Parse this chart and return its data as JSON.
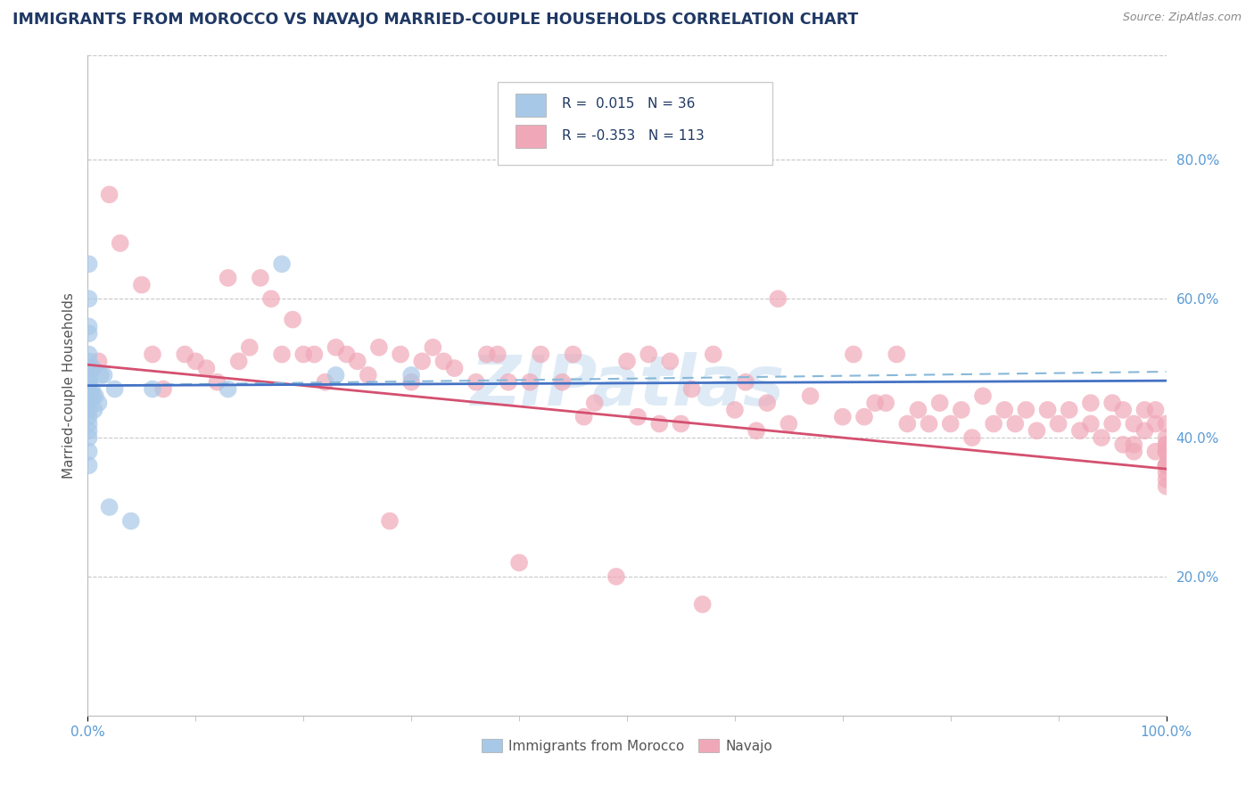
{
  "title": "IMMIGRANTS FROM MOROCCO VS NAVAJO MARRIED-COUPLE HOUSEHOLDS CORRELATION CHART",
  "source": "Source: ZipAtlas.com",
  "ylabel": "Married-couple Households",
  "legend_R1": "0.015",
  "legend_N1": "36",
  "legend_R2": "-0.353",
  "legend_N2": "113",
  "blue_color": "#a8c8e8",
  "pink_color": "#f0a8b8",
  "trendline_blue_solid": "#4472c4",
  "trendline_pink_solid": "#d45070",
  "trendline_blue_dashed": "#88b8d8",
  "background_color": "#ffffff",
  "grid_color": "#c8c8c8",
  "title_color": "#1f3864",
  "source_color": "#888888",
  "tick_color": "#5b9bd5",
  "ylabel_color": "#555555",
  "legend_text_color": "#1f3864",
  "watermark_color": "#c8dff0",
  "blue_scatter_x": [
    0.001,
    0.001,
    0.001,
    0.001,
    0.001,
    0.001,
    0.001,
    0.001,
    0.001,
    0.001,
    0.001,
    0.001,
    0.001,
    0.001,
    0.001,
    0.001,
    0.001,
    0.001,
    0.001,
    0.001,
    0.004,
    0.005,
    0.005,
    0.006,
    0.007,
    0.01,
    0.012,
    0.015,
    0.02,
    0.025,
    0.04,
    0.06,
    0.13,
    0.18,
    0.23,
    0.3
  ],
  "blue_scatter_y": [
    0.52,
    0.51,
    0.5,
    0.49,
    0.48,
    0.47,
    0.46,
    0.45,
    0.44,
    0.43,
    0.42,
    0.41,
    0.4,
    0.56,
    0.6,
    0.65,
    0.55,
    0.38,
    0.36,
    0.48,
    0.47,
    0.46,
    0.5,
    0.44,
    0.46,
    0.45,
    0.49,
    0.49,
    0.3,
    0.47,
    0.28,
    0.47,
    0.47,
    0.65,
    0.49,
    0.49
  ],
  "pink_scatter_x": [
    0.01,
    0.02,
    0.03,
    0.05,
    0.06,
    0.07,
    0.09,
    0.1,
    0.11,
    0.12,
    0.13,
    0.14,
    0.15,
    0.16,
    0.17,
    0.18,
    0.19,
    0.2,
    0.21,
    0.22,
    0.23,
    0.24,
    0.25,
    0.26,
    0.27,
    0.28,
    0.29,
    0.3,
    0.31,
    0.32,
    0.33,
    0.34,
    0.36,
    0.37,
    0.38,
    0.39,
    0.4,
    0.41,
    0.42,
    0.44,
    0.45,
    0.46,
    0.47,
    0.49,
    0.5,
    0.51,
    0.52,
    0.53,
    0.54,
    0.55,
    0.56,
    0.57,
    0.58,
    0.6,
    0.61,
    0.62,
    0.63,
    0.64,
    0.65,
    0.67,
    0.7,
    0.71,
    0.72,
    0.73,
    0.74,
    0.75,
    0.76,
    0.77,
    0.78,
    0.79,
    0.8,
    0.81,
    0.82,
    0.83,
    0.84,
    0.85,
    0.86,
    0.87,
    0.88,
    0.89,
    0.9,
    0.91,
    0.92,
    0.93,
    0.93,
    0.94,
    0.95,
    0.95,
    0.96,
    0.96,
    0.97,
    0.97,
    0.97,
    0.98,
    0.98,
    0.99,
    0.99,
    0.99,
    1.0,
    1.0,
    1.0,
    1.0,
    1.0,
    1.0,
    1.0,
    1.0,
    1.0,
    1.0,
    1.0,
    1.0,
    1.0,
    1.0,
    1.0
  ],
  "pink_scatter_y": [
    0.51,
    0.75,
    0.68,
    0.62,
    0.52,
    0.47,
    0.52,
    0.51,
    0.5,
    0.48,
    0.63,
    0.51,
    0.53,
    0.63,
    0.6,
    0.52,
    0.57,
    0.52,
    0.52,
    0.48,
    0.53,
    0.52,
    0.51,
    0.49,
    0.53,
    0.28,
    0.52,
    0.48,
    0.51,
    0.53,
    0.51,
    0.5,
    0.48,
    0.52,
    0.52,
    0.48,
    0.22,
    0.48,
    0.52,
    0.48,
    0.52,
    0.43,
    0.45,
    0.2,
    0.51,
    0.43,
    0.52,
    0.42,
    0.51,
    0.42,
    0.47,
    0.16,
    0.52,
    0.44,
    0.48,
    0.41,
    0.45,
    0.6,
    0.42,
    0.46,
    0.43,
    0.52,
    0.43,
    0.45,
    0.45,
    0.52,
    0.42,
    0.44,
    0.42,
    0.45,
    0.42,
    0.44,
    0.4,
    0.46,
    0.42,
    0.44,
    0.42,
    0.44,
    0.41,
    0.44,
    0.42,
    0.44,
    0.41,
    0.45,
    0.42,
    0.4,
    0.45,
    0.42,
    0.39,
    0.44,
    0.39,
    0.42,
    0.38,
    0.44,
    0.41,
    0.38,
    0.42,
    0.44,
    0.4,
    0.42,
    0.39,
    0.38,
    0.39,
    0.38,
    0.36,
    0.36,
    0.38,
    0.35,
    0.36,
    0.36,
    0.34,
    0.33,
    0.36
  ],
  "blue_trend_x": [
    0.0,
    1.0
  ],
  "blue_trend_y": [
    0.475,
    0.482
  ],
  "pink_trend_x": [
    0.0,
    1.0
  ],
  "pink_trend_y": [
    0.505,
    0.355
  ],
  "blue_dashed_trend_x": [
    0.0,
    1.0
  ],
  "blue_dashed_trend_y": [
    0.475,
    0.495
  ],
  "ylim": [
    0.0,
    0.95
  ],
  "xlim": [
    0.0,
    1.0
  ],
  "yticks": [
    0.2,
    0.4,
    0.6,
    0.8
  ],
  "ytick_labels": [
    "20.0%",
    "40.0%",
    "60.0%",
    "80.0%"
  ],
  "xtick_labels_left": "0.0%",
  "xtick_labels_right": "100.0%"
}
